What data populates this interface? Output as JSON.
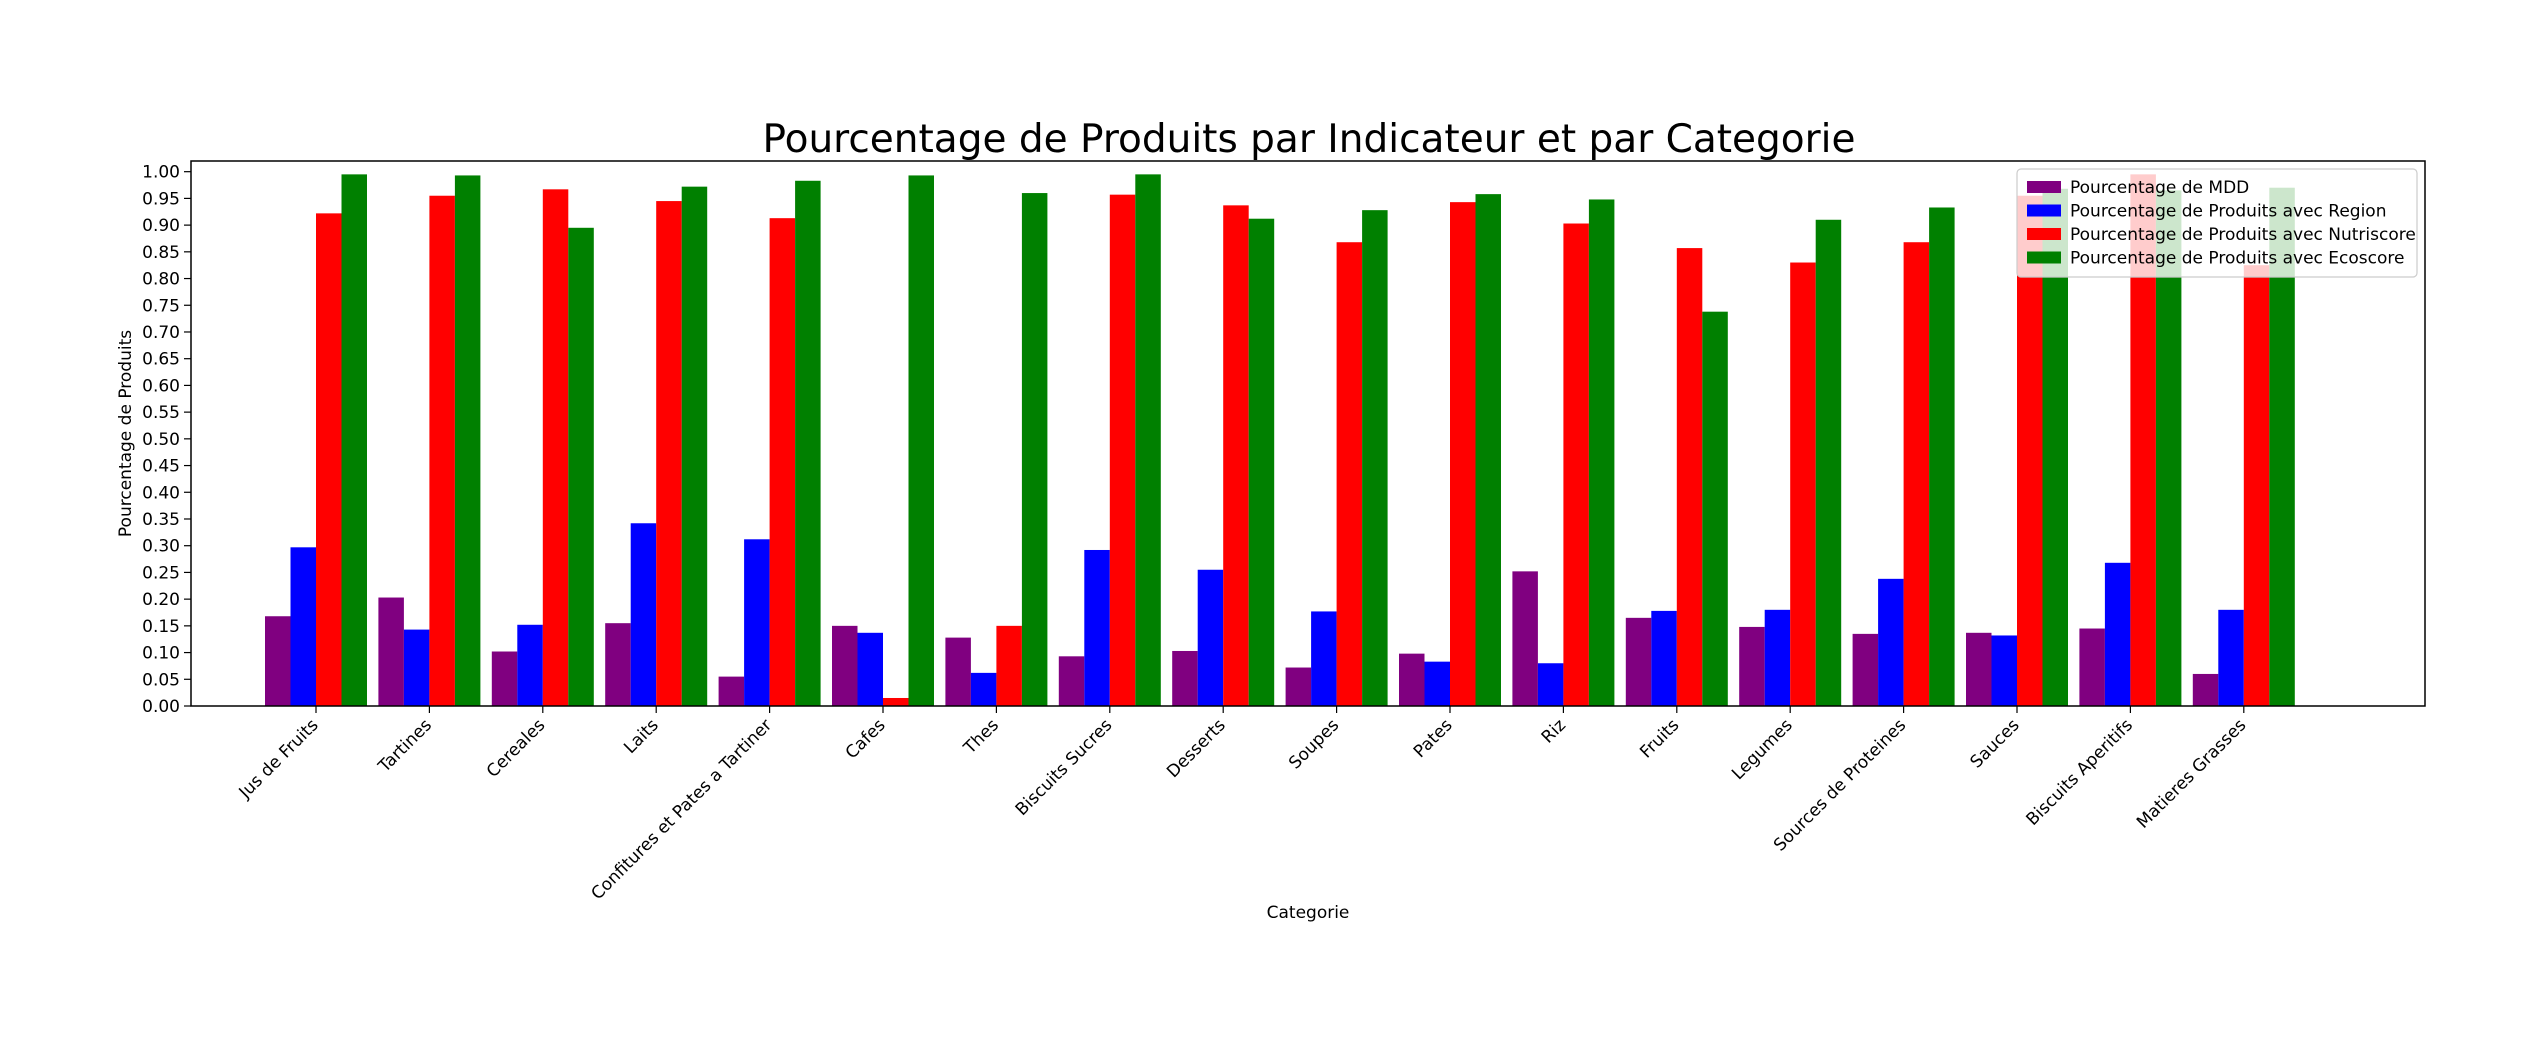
{
  "chart_data": {
    "type": "bar",
    "title": "Pourcentage de Produits par Indicateur et par Categorie",
    "xlabel": "Categorie",
    "ylabel": "Pourcentage de Produits",
    "ylim": [
      0,
      1.02
    ],
    "yticks": [
      0.0,
      0.05,
      0.1,
      0.15,
      0.2,
      0.25,
      0.3,
      0.35,
      0.4,
      0.45,
      0.5,
      0.55,
      0.6,
      0.65,
      0.7,
      0.75,
      0.8,
      0.85,
      0.9,
      0.95,
      1.0
    ],
    "grid": false,
    "legend_position": "top-right",
    "categories": [
      "Jus de Fruits",
      "Tartines",
      "Cereales",
      "Laits",
      "Confitures et Pates a Tartiner",
      "Cafes",
      "Thes",
      "Biscuits Sucres",
      "Desserts",
      "Soupes",
      "Pates",
      "Riz",
      "Fruits",
      "Legumes",
      "Sources de Proteines",
      "Sauces",
      "Biscuits Aperitifs",
      "Matieres Grasses"
    ],
    "series": [
      {
        "name": "Pourcentage de MDD",
        "color": "#800080",
        "values": [
          0.168,
          0.203,
          0.102,
          0.155,
          0.055,
          0.15,
          0.128,
          0.093,
          0.103,
          0.072,
          0.098,
          0.252,
          0.165,
          0.148,
          0.135,
          0.137,
          0.145,
          0.06
        ]
      },
      {
        "name": "Pourcentage de Produits avec Region",
        "color": "#0000ff",
        "values": [
          0.297,
          0.143,
          0.152,
          0.342,
          0.312,
          0.137,
          0.062,
          0.292,
          0.255,
          0.177,
          0.083,
          0.08,
          0.178,
          0.18,
          0.238,
          0.132,
          0.268,
          0.18
        ]
      },
      {
        "name": "Pourcentage de Produits avec Nutriscore",
        "color": "#ff0000",
        "values": [
          0.922,
          0.955,
          0.967,
          0.945,
          0.913,
          0.015,
          0.15,
          0.957,
          0.937,
          0.868,
          0.943,
          0.903,
          0.857,
          0.83,
          0.868,
          0.955,
          0.995,
          0.825
        ]
      },
      {
        "name": "Pourcentage de Produits avec Ecoscore",
        "color": "#008000",
        "values": [
          0.995,
          0.993,
          0.895,
          0.972,
          0.983,
          0.993,
          0.96,
          0.995,
          0.912,
          0.928,
          0.958,
          0.948,
          0.738,
          0.91,
          0.933,
          0.968,
          0.965,
          0.97
        ]
      }
    ]
  }
}
